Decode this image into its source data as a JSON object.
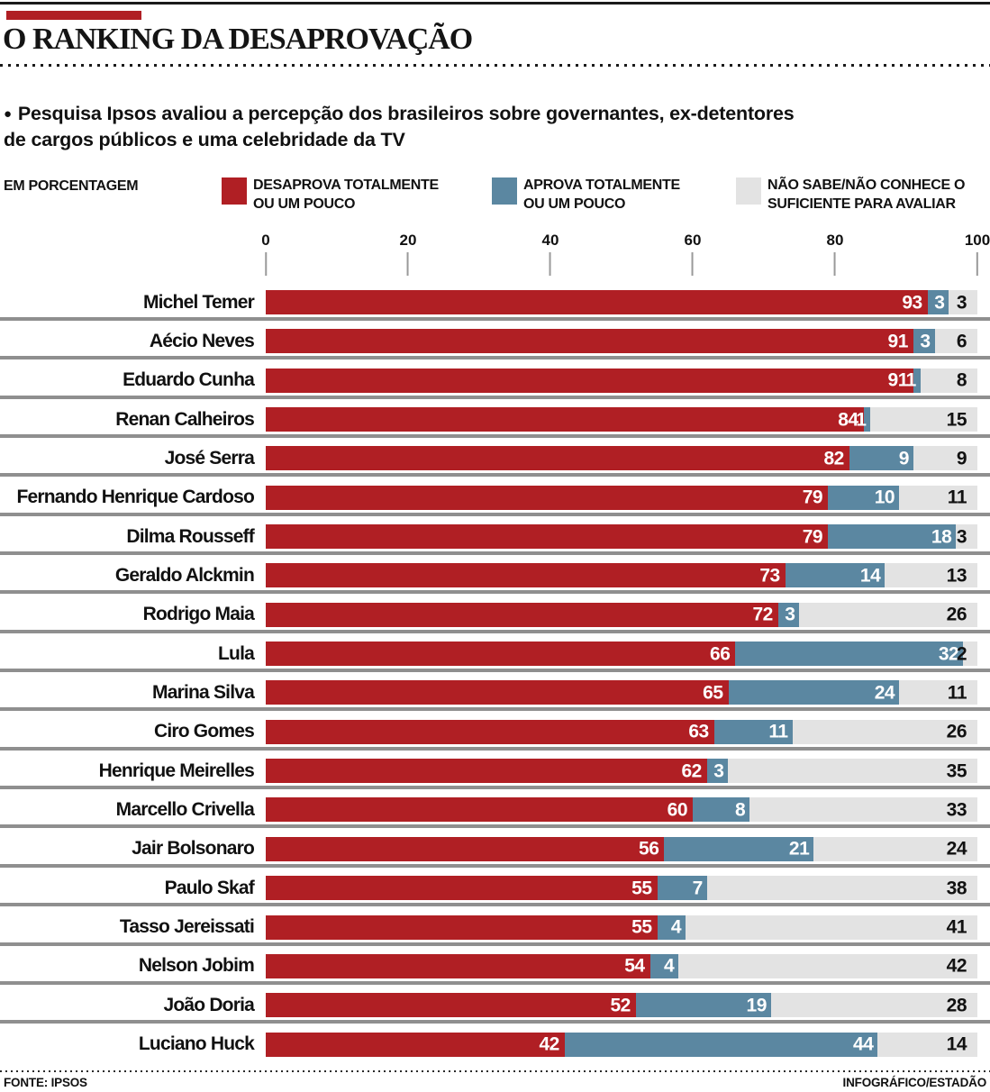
{
  "header": {
    "title": "O RANKING DA DESAPROVAÇÃO"
  },
  "intro": {
    "bullet": "●",
    "text": "Pesquisa Ipsos avaliou a percepção dos brasileiros sobre governantes, ex-detentores\nde cargos públicos e uma celebridade da TV"
  },
  "legend": {
    "unit_label": "EM PORCENTAGEM",
    "items": [
      {
        "id": "desaprova",
        "color": "#b01f24",
        "line1": "DESAPROVA TOTALMENTE",
        "line2": "OU UM POUCO"
      },
      {
        "id": "aprova",
        "color": "#5b87a1",
        "line1": "APROVA TOTALMENTE",
        "line2": "OU UM POUCO"
      },
      {
        "id": "nao-sabe",
        "color": "#e3e3e3",
        "line1": "NÃO SABE/NÃO CONHECE O",
        "line2": "SUFICIENTE PARA AVALIAR"
      }
    ]
  },
  "chart_data": {
    "type": "bar",
    "orientation": "horizontal",
    "stacked": true,
    "xlim": [
      0,
      100
    ],
    "axis_ticks": [
      0,
      20,
      40,
      60,
      80,
      100
    ],
    "grid": false,
    "legend_position": "top",
    "series": [
      {
        "name": "Desaprova totalmente ou um pouco",
        "color": "#b01f24"
      },
      {
        "name": "Aprova totalmente ou um pouco",
        "color": "#5b87a1"
      },
      {
        "name": "Não sabe/não conhece o suficiente para avaliar",
        "color": "#e3e3e3"
      }
    ],
    "rows": [
      {
        "name": "Michel Temer",
        "desaprova": 93,
        "aprova": 3,
        "nao_sabe": 3
      },
      {
        "name": "Aécio Neves",
        "desaprova": 91,
        "aprova": 3,
        "nao_sabe": 6
      },
      {
        "name": "Eduardo Cunha",
        "desaprova": 91,
        "aprova": 1,
        "nao_sabe": 8
      },
      {
        "name": "Renan Calheiros",
        "desaprova": 84,
        "aprova": 1,
        "nao_sabe": 15
      },
      {
        "name": "José Serra",
        "desaprova": 82,
        "aprova": 9,
        "nao_sabe": 9
      },
      {
        "name": "Fernando Henrique Cardoso",
        "desaprova": 79,
        "aprova": 10,
        "nao_sabe": 11
      },
      {
        "name": "Dilma Rousseff",
        "desaprova": 79,
        "aprova": 18,
        "nao_sabe": 3
      },
      {
        "name": "Geraldo Alckmin",
        "desaprova": 73,
        "aprova": 14,
        "nao_sabe": 13
      },
      {
        "name": "Rodrigo Maia",
        "desaprova": 72,
        "aprova": 3,
        "nao_sabe": 26
      },
      {
        "name": "Lula",
        "desaprova": 66,
        "aprova": 32,
        "nao_sabe": 2
      },
      {
        "name": "Marina Silva",
        "desaprova": 65,
        "aprova": 24,
        "nao_sabe": 11
      },
      {
        "name": "Ciro Gomes",
        "desaprova": 63,
        "aprova": 11,
        "nao_sabe": 26
      },
      {
        "name": "Henrique Meirelles",
        "desaprova": 62,
        "aprova": 3,
        "nao_sabe": 35
      },
      {
        "name": "Marcello Crivella",
        "desaprova": 60,
        "aprova": 8,
        "nao_sabe": 33
      },
      {
        "name": "Jair Bolsonaro",
        "desaprova": 56,
        "aprova": 21,
        "nao_sabe": 24
      },
      {
        "name": "Paulo Skaf",
        "desaprova": 55,
        "aprova": 7,
        "nao_sabe": 38
      },
      {
        "name": "Tasso Jereissati",
        "desaprova": 55,
        "aprova": 4,
        "nao_sabe": 41
      },
      {
        "name": "Nelson Jobim",
        "desaprova": 54,
        "aprova": 4,
        "nao_sabe": 42
      },
      {
        "name": "João Doria",
        "desaprova": 52,
        "aprova": 19,
        "nao_sabe": 28
      },
      {
        "name": "Luciano Huck",
        "desaprova": 42,
        "aprova": 44,
        "nao_sabe": 14
      }
    ]
  },
  "footer": {
    "source": "FONTE: IPSOS",
    "credit": "INFOGRÁFICO/ESTADÃO"
  },
  "colors": {
    "desaprova": "#b01f24",
    "aprova": "#5b87a1",
    "nao_sabe": "#e3e3e3",
    "separator": "#8f8f8f",
    "accent_red": "#b01f24"
  }
}
